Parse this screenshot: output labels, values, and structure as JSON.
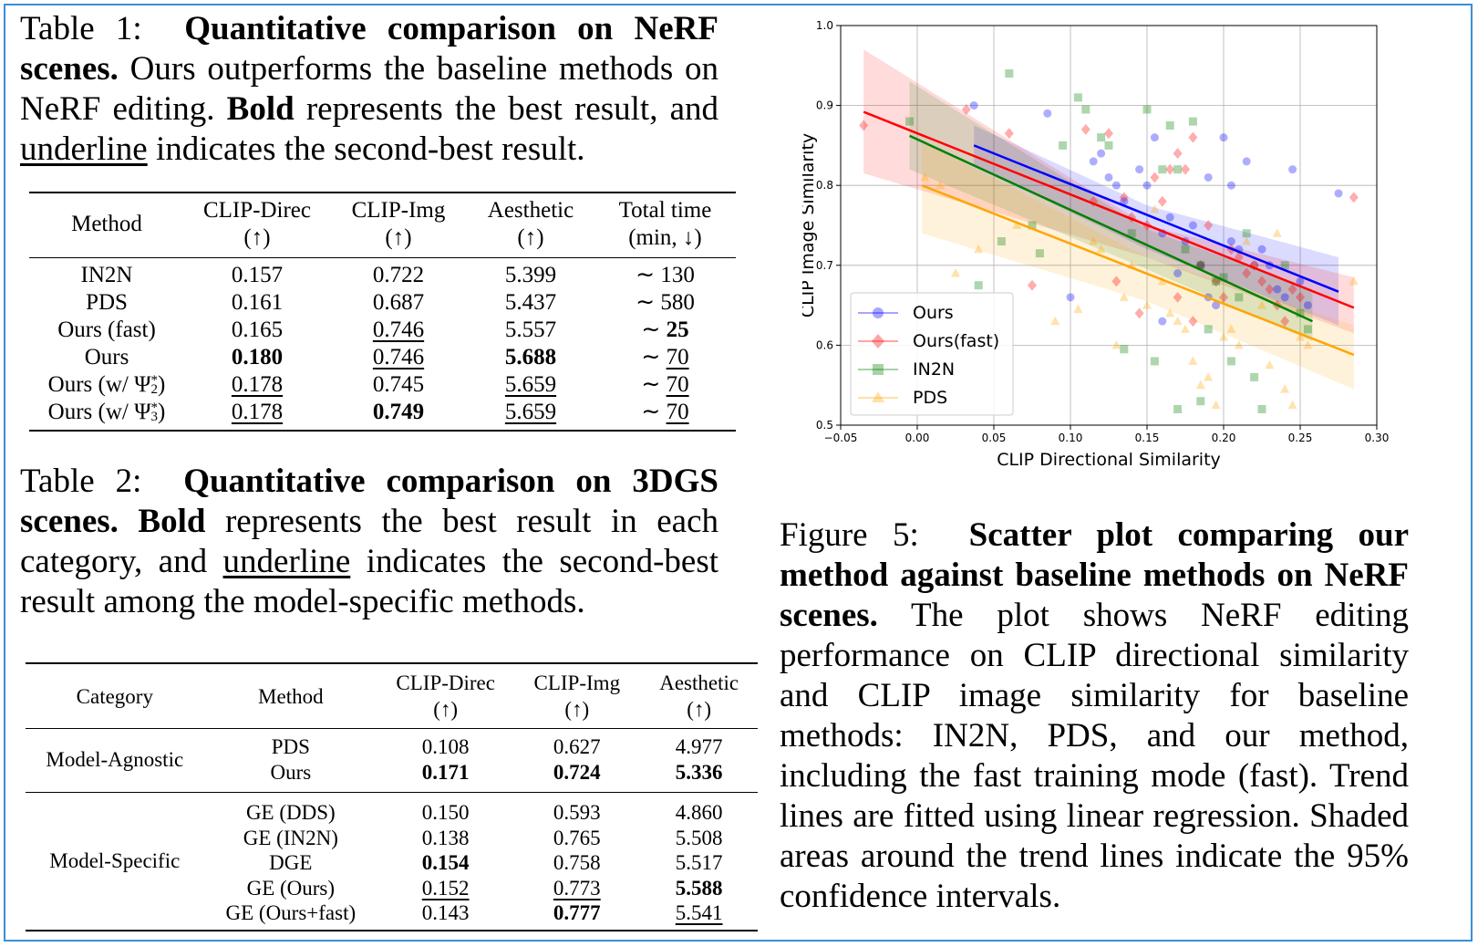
{
  "table1": {
    "caption_prefix": "Table 1:",
    "caption_title": "Quantitative comparison on NeRF scenes.",
    "caption_text_1": "Ours outperforms the baseline methods on NeRF editing.",
    "caption_bold": "Bold",
    "caption_text_2": "represents the best result, and",
    "caption_underline": "underline",
    "caption_text_3": "indicates the second-best result.",
    "headers": [
      {
        "line1": "Method",
        "line2": ""
      },
      {
        "line1": "CLIP-Direc",
        "line2": "(↑)"
      },
      {
        "line1": "CLIP-Img",
        "line2": "(↑)"
      },
      {
        "line1": "Aesthetic",
        "line2": "(↑)"
      },
      {
        "line1": "Total time",
        "line2": "(min, ↓)"
      }
    ],
    "rows": [
      {
        "method": "IN2N",
        "clip_direc": "0.157",
        "clip_img": "0.722",
        "aesthetic": "5.399",
        "time_prefix": "∼",
        "time": "130"
      },
      {
        "method": "PDS",
        "clip_direc": "0.161",
        "clip_img": "0.687",
        "aesthetic": "5.437",
        "time_prefix": "∼",
        "time": "580"
      },
      {
        "method": "Ours (fast)",
        "clip_direc": "0.165",
        "clip_img": "0.746",
        "aesthetic": "5.557",
        "time_prefix": "∼",
        "time": "25"
      },
      {
        "method": "Ours",
        "clip_direc": "0.180",
        "clip_img": "0.746",
        "aesthetic": "5.688",
        "time_prefix": "∼",
        "time": "70"
      },
      {
        "method_prefix": "Ours (w/ Ψ",
        "method_sub": "2",
        "method_sup": "*",
        "method_suffix": ")",
        "clip_direc": "0.178",
        "clip_img": "0.745",
        "aesthetic": "5.659",
        "time_prefix": "∼",
        "time": "70"
      },
      {
        "method_prefix": "Ours (w/ Ψ",
        "method_sub": "3",
        "method_sup": "*",
        "method_suffix": ")",
        "clip_direc": "0.178",
        "clip_img": "0.749",
        "aesthetic": "5.659",
        "time_prefix": "∼",
        "time": "70"
      }
    ]
  },
  "table2": {
    "caption_prefix": "Table 2:",
    "caption_title": "Quantitative comparison on 3DGS scenes.",
    "caption_bold": "Bold",
    "caption_text_1": "represents the best result in each category, and",
    "caption_underline": "underline",
    "caption_text_2": "indicates the second-best result among the model-specific methods.",
    "headers": [
      {
        "line1": "Category",
        "line2": ""
      },
      {
        "line1": "Method",
        "line2": ""
      },
      {
        "line1": "CLIP-Direc",
        "line2": "(↑)"
      },
      {
        "line1": "CLIP-Img",
        "line2": "(↑)"
      },
      {
        "line1": "Aesthetic",
        "line2": "(↑)"
      }
    ],
    "groups": [
      {
        "category": "Model-Agnostic",
        "rows": [
          {
            "method": "PDS",
            "clip_direc": "0.108",
            "clip_img": "0.627",
            "aesthetic": "4.977"
          },
          {
            "method": "Ours",
            "clip_direc": "0.171",
            "clip_img": "0.724",
            "aesthetic": "5.336"
          }
        ]
      },
      {
        "category": "Model-Specific",
        "rows": [
          {
            "method": "GE (DDS)",
            "clip_direc": "0.150",
            "clip_img": "0.593",
            "aesthetic": "4.860"
          },
          {
            "method": "GE (IN2N)",
            "clip_direc": "0.138",
            "clip_img": "0.765",
            "aesthetic": "5.508"
          },
          {
            "method": "DGE",
            "clip_direc": "0.154",
            "clip_img": "0.758",
            "aesthetic": "5.517"
          },
          {
            "method": "GE (Ours)",
            "clip_direc": "0.152",
            "clip_img": "0.773",
            "aesthetic": "5.588"
          },
          {
            "method": "GE (Ours+fast)",
            "clip_direc": "0.143",
            "clip_img": "0.777",
            "aesthetic": "5.541"
          }
        ]
      }
    ]
  },
  "figure5": {
    "caption_prefix": "Figure 5:",
    "caption_title": "Scatter plot comparing our method against baseline methods on NeRF scenes.",
    "caption_text": "The plot shows NeRF editing performance on CLIP directional similarity and CLIP image similarity for baseline methods: IN2N, PDS, and our method, including the fast training mode (fast). Trend lines are fitted using linear regression. Shaded areas around the trend lines indicate the 95% confidence intervals."
  },
  "colors": {
    "ours": "#0000ff",
    "ours_fast": "#ff0000",
    "in2n": "#008000",
    "pds": "#ffa500",
    "frame": "#3a8fd8"
  },
  "chart_data": {
    "type": "scatter",
    "title": "",
    "xlabel": "CLIP Directional Similarity",
    "ylabel": "CLIP Image Similarity",
    "xlim": [
      -0.05,
      0.3
    ],
    "ylim": [
      0.5,
      1.0
    ],
    "xticks": [
      "−0.05",
      "0.00",
      "0.05",
      "0.10",
      "0.15",
      "0.20",
      "0.25",
      "0.30"
    ],
    "yticks": [
      "0.5",
      "0.6",
      "0.7",
      "0.8",
      "0.9",
      "1.0"
    ],
    "grid": true,
    "legend_position": "bottom-left",
    "series": [
      {
        "name": "Ours",
        "color": "#0000ff",
        "marker": "circle",
        "points": [
          [
            0.037,
            0.9
          ],
          [
            0.085,
            0.89
          ],
          [
            0.1,
            0.66
          ],
          [
            0.115,
            0.83
          ],
          [
            0.12,
            0.84
          ],
          [
            0.125,
            0.81
          ],
          [
            0.13,
            0.8
          ],
          [
            0.135,
            0.78
          ],
          [
            0.145,
            0.82
          ],
          [
            0.15,
            0.8
          ],
          [
            0.155,
            0.86
          ],
          [
            0.16,
            0.74
          ],
          [
            0.165,
            0.76
          ],
          [
            0.17,
            0.69
          ],
          [
            0.175,
            0.73
          ],
          [
            0.18,
            0.75
          ],
          [
            0.185,
            0.7
          ],
          [
            0.19,
            0.66
          ],
          [
            0.195,
            0.65
          ],
          [
            0.2,
            0.86
          ],
          [
            0.205,
            0.73
          ],
          [
            0.21,
            0.72
          ],
          [
            0.215,
            0.83
          ],
          [
            0.22,
            0.7
          ],
          [
            0.225,
            0.72
          ],
          [
            0.23,
            0.7
          ],
          [
            0.235,
            0.67
          ],
          [
            0.24,
            0.66
          ],
          [
            0.245,
            0.82
          ],
          [
            0.25,
            0.68
          ],
          [
            0.255,
            0.65
          ],
          [
            0.275,
            0.79
          ],
          [
            0.16,
            0.63
          ],
          [
            0.19,
            0.81
          ],
          [
            0.205,
            0.8
          ]
        ],
        "trend": [
          [
            0.037,
            0.85
          ],
          [
            0.275,
            0.667
          ]
        ],
        "ci_low": [
          [
            0.037,
            0.825
          ],
          [
            0.15,
            0.72
          ],
          [
            0.275,
            0.625
          ]
        ],
        "ci_high": [
          [
            0.037,
            0.875
          ],
          [
            0.15,
            0.775
          ],
          [
            0.275,
            0.71
          ]
        ]
      },
      {
        "name": "Ours(fast)",
        "color": "#ff0000",
        "marker": "diamond",
        "points": [
          [
            -0.035,
            0.875
          ],
          [
            0.032,
            0.895
          ],
          [
            0.06,
            0.865
          ],
          [
            0.075,
            0.675
          ],
          [
            0.11,
            0.87
          ],
          [
            0.115,
            0.78
          ],
          [
            0.125,
            0.865
          ],
          [
            0.13,
            0.68
          ],
          [
            0.135,
            0.785
          ],
          [
            0.14,
            0.76
          ],
          [
            0.15,
            0.75
          ],
          [
            0.155,
            0.81
          ],
          [
            0.16,
            0.78
          ],
          [
            0.165,
            0.82
          ],
          [
            0.17,
            0.84
          ],
          [
            0.175,
            0.82
          ],
          [
            0.18,
            0.86
          ],
          [
            0.185,
            0.7
          ],
          [
            0.19,
            0.75
          ],
          [
            0.195,
            0.68
          ],
          [
            0.2,
            0.66
          ],
          [
            0.205,
            0.72
          ],
          [
            0.21,
            0.71
          ],
          [
            0.215,
            0.69
          ],
          [
            0.22,
            0.7
          ],
          [
            0.225,
            0.68
          ],
          [
            0.23,
            0.67
          ],
          [
            0.235,
            0.65
          ],
          [
            0.24,
            0.63
          ],
          [
            0.245,
            0.67
          ],
          [
            0.25,
            0.66
          ],
          [
            0.285,
            0.785
          ],
          [
            0.18,
            0.63
          ],
          [
            0.17,
            0.66
          ],
          [
            0.145,
            0.64
          ]
        ],
        "trend": [
          [
            -0.035,
            0.892
          ],
          [
            0.285,
            0.647
          ]
        ],
        "ci_low": [
          [
            -0.035,
            0.815
          ],
          [
            0.15,
            0.71
          ],
          [
            0.285,
            0.615
          ]
        ],
        "ci_high": [
          [
            -0.035,
            0.97
          ],
          [
            0.15,
            0.75
          ],
          [
            0.285,
            0.685
          ]
        ]
      },
      {
        "name": "IN2N",
        "color": "#008000",
        "marker": "square",
        "points": [
          [
            -0.005,
            0.88
          ],
          [
            0.04,
            0.675
          ],
          [
            0.055,
            0.73
          ],
          [
            0.06,
            0.94
          ],
          [
            0.075,
            0.75
          ],
          [
            0.08,
            0.715
          ],
          [
            0.095,
            0.85
          ],
          [
            0.105,
            0.91
          ],
          [
            0.11,
            0.895
          ],
          [
            0.12,
            0.86
          ],
          [
            0.125,
            0.85
          ],
          [
            0.135,
            0.595
          ],
          [
            0.14,
            0.74
          ],
          [
            0.15,
            0.895
          ],
          [
            0.155,
            0.58
          ],
          [
            0.16,
            0.82
          ],
          [
            0.165,
            0.875
          ],
          [
            0.17,
            0.82
          ],
          [
            0.175,
            0.72
          ],
          [
            0.18,
            0.88
          ],
          [
            0.185,
            0.7
          ],
          [
            0.19,
            0.62
          ],
          [
            0.195,
            0.68
          ],
          [
            0.2,
            0.685
          ],
          [
            0.205,
            0.58
          ],
          [
            0.21,
            0.66
          ],
          [
            0.215,
            0.74
          ],
          [
            0.22,
            0.56
          ],
          [
            0.225,
            0.52
          ],
          [
            0.24,
            0.7
          ],
          [
            0.25,
            0.64
          ],
          [
            0.255,
            0.62
          ],
          [
            0.17,
            0.52
          ],
          [
            0.185,
            0.53
          ]
        ],
        "trend": [
          [
            -0.005,
            0.862
          ],
          [
            0.258,
            0.63
          ]
        ],
        "ci_low": [
          [
            -0.005,
            0.82
          ],
          [
            0.15,
            0.695
          ],
          [
            0.258,
            0.605
          ]
        ],
        "ci_high": [
          [
            -0.005,
            0.93
          ],
          [
            0.15,
            0.745
          ],
          [
            0.258,
            0.67
          ]
        ]
      },
      {
        "name": "PDS",
        "color": "#ffa500",
        "marker": "triangle",
        "points": [
          [
            0.005,
            0.81
          ],
          [
            0.015,
            0.8
          ],
          [
            0.025,
            0.69
          ],
          [
            0.04,
            0.72
          ],
          [
            0.065,
            0.75
          ],
          [
            0.09,
            0.63
          ],
          [
            0.105,
            0.645
          ],
          [
            0.115,
            0.73
          ],
          [
            0.12,
            0.72
          ],
          [
            0.135,
            0.66
          ],
          [
            0.14,
            0.7
          ],
          [
            0.15,
            0.65
          ],
          [
            0.155,
            0.77
          ],
          [
            0.16,
            0.68
          ],
          [
            0.165,
            0.64
          ],
          [
            0.17,
            0.63
          ],
          [
            0.18,
            0.58
          ],
          [
            0.185,
            0.55
          ],
          [
            0.19,
            0.56
          ],
          [
            0.195,
            0.525
          ],
          [
            0.2,
            0.61
          ],
          [
            0.205,
            0.62
          ],
          [
            0.21,
            0.6
          ],
          [
            0.215,
            0.73
          ],
          [
            0.22,
            0.7
          ],
          [
            0.225,
            0.65
          ],
          [
            0.23,
            0.575
          ],
          [
            0.235,
            0.74
          ],
          [
            0.24,
            0.545
          ],
          [
            0.245,
            0.525
          ],
          [
            0.25,
            0.61
          ],
          [
            0.255,
            0.6
          ],
          [
            0.285,
            0.68
          ],
          [
            0.13,
            0.6
          ],
          [
            0.175,
            0.62
          ]
        ],
        "trend": [
          [
            0.003,
            0.8
          ],
          [
            0.285,
            0.588
          ]
        ],
        "ci_low": [
          [
            0.003,
            0.74
          ],
          [
            0.15,
            0.655
          ],
          [
            0.285,
            0.545
          ]
        ],
        "ci_high": [
          [
            0.003,
            0.855
          ],
          [
            0.15,
            0.71
          ],
          [
            0.285,
            0.625
          ]
        ]
      }
    ]
  }
}
